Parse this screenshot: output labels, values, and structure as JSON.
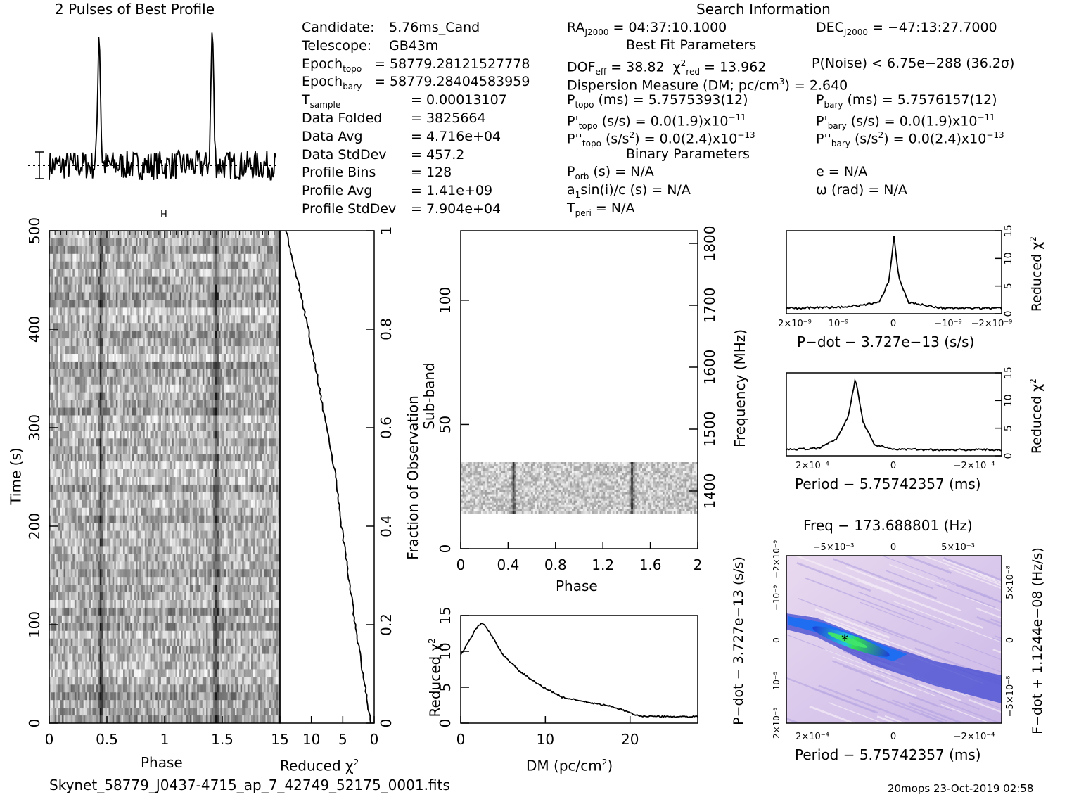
{
  "header": {
    "profile_title": "2 Pulses of Best Profile",
    "search_title": "Search Information",
    "filename": "Skynet_58779_J0437-4715_ap_7_42749_52175_0001.fits",
    "footer_stamp": "20mops 23-Oct-2019 02:58"
  },
  "info": {
    "col1": [
      {
        "label": "Candidate:",
        "value": "5.76ms_Cand"
      },
      {
        "label": "Telescope:",
        "value": "GB43m"
      },
      {
        "label": "Epoch",
        "sub": "topo",
        "value": "= 58779.28121527778"
      },
      {
        "label": "Epoch",
        "sub": "bary",
        "value": "= 58779.28404583959"
      },
      {
        "label": "T",
        "sub": "sample",
        "value": "=   0.00013107"
      },
      {
        "label": "Data Folded",
        "value": "=   3825664"
      },
      {
        "label": "Data Avg",
        "value": "=   4.716e+04"
      },
      {
        "label": "Data StdDev",
        "value": "=   457.2"
      },
      {
        "label": "Profile Bins",
        "value": "=   128"
      },
      {
        "label": "Profile Avg",
        "value": "=   1.41e+09"
      },
      {
        "label": "Profile StdDev",
        "value": "=   7.904e+04"
      }
    ],
    "ra": "RA",
    "ra_sub": "J2000",
    "ra_value": " = 04:37:10.1000",
    "dec": "DEC",
    "dec_sub": "J2000",
    "dec_value": " = −47:13:27.7000",
    "best_fit_title": "Best Fit Parameters",
    "dof": "DOF",
    "dof_sub": "eff",
    "dof_value": " = 38.82",
    "chi": "χ",
    "chi_sup": "2",
    "chi_sub": "red",
    "chi_value": " = 13.962",
    "pnoise": "P(Noise) < 6.75e−288   (36.2σ)",
    "dm_line": "Dispersion Measure (DM; pc/cm",
    "dm_sup": "3",
    "dm_value": ") = 2.640",
    "ptopo": "P",
    "ptopo_sub": "topo",
    "ptopo_value": " (ms) =  5.7575393(12)",
    "pbary": "P",
    "pbary_sub": "bary",
    "pbary_value": " (ms) =  5.7576157(12)",
    "pdtopo": "P'",
    "pdtopo_sub": "topo",
    "pdtopo_value": " (s/s) = 0.0(1.9)x10",
    "pdtopo_exp": "−11",
    "pdbary": "P'",
    "pdbary_sub": "bary",
    "pdbary_value": " (s/s) = 0.0(1.9)x10",
    "pdbary_exp": "−11",
    "pddtopo": "P''",
    "pddtopo_sub": "topo",
    "pddtopo_value": " (s/s",
    "pddtopo_mid": "2",
    "pddtopo_value2": ") = 0.0(2.4)x10",
    "pddtopo_exp": "−13",
    "pddbary": "P''",
    "pddbary_sub": "bary",
    "pddbary_value": " (s/s",
    "pddbary_mid": "2",
    "pddbary_value2": ") = 0.0(2.4)x10",
    "pddbary_exp": "−13",
    "binary_title": "Binary Parameters",
    "porb": "P",
    "porb_sub": "orb",
    "porb_value": " (s) = N/A",
    "ecc": "e = N/A",
    "a1": "a",
    "a1_sub": "1",
    "a1_value": "sin(i)/c (s) = N/A",
    "omega": "ω (rad) = N/A",
    "tperi": "T",
    "tperi_sub": "peri",
    "tperi_value": " = N/A"
  },
  "chart_data": [
    {
      "type": "line",
      "title": "2 Pulses of Best Profile",
      "xlabel": "",
      "ylabel": "",
      "description_series": "pulse profile",
      "x": [
        0.0,
        0.1,
        0.2,
        0.3,
        0.38,
        0.42,
        0.44,
        0.46,
        0.5,
        0.6,
        0.7,
        0.8,
        0.9,
        1.0,
        1.1,
        1.2,
        1.3,
        1.38,
        1.42,
        1.44,
        1.46,
        1.5,
        1.6,
        1.7,
        1.8,
        1.9,
        2.0
      ],
      "y": [
        0.05,
        -0.1,
        0.02,
        -0.08,
        0.15,
        0.9,
        1.0,
        0.6,
        0.05,
        -0.15,
        -0.05,
        -0.1,
        -0.05,
        0.0,
        -0.18,
        0.05,
        -0.1,
        0.2,
        0.9,
        1.0,
        0.55,
        0.05,
        -0.12,
        0.02,
        -0.2,
        -0.1,
        -0.05
      ]
    },
    {
      "type": "heatmap",
      "xlabel": "Phase",
      "ylabel": "Time (s)",
      "xlim": [
        0,
        2
      ],
      "ylim": [
        0,
        500
      ],
      "x_ticks": [
        "0",
        "0.5",
        "1",
        "1.5"
      ],
      "y_ticks": [
        "0",
        "100",
        "200",
        "300",
        "400",
        "500"
      ]
    },
    {
      "type": "line",
      "xlabel": "Reduced χ²",
      "ylabel": "Fraction of Observation",
      "x_ticks": [
        "15",
        "10",
        "5",
        "0"
      ],
      "y_ticks": [
        "0",
        "0.2",
        "0.4",
        "0.6",
        "0.8",
        "1"
      ],
      "fraction": [
        0.0,
        0.02,
        0.05,
        0.1,
        0.2,
        0.3,
        0.4,
        0.5,
        0.6,
        0.7,
        0.8,
        0.9,
        0.95,
        1.0
      ],
      "chi2": [
        0.5,
        0.8,
        1.1,
        1.8,
        3.0,
        4.1,
        5.2,
        6.1,
        7.6,
        9.0,
        10.5,
        12.2,
        13.2,
        14.0
      ]
    },
    {
      "type": "heatmap",
      "xlabel": "Phase",
      "ylabel": "Sub-band",
      "y2label": "Frequency (MHz)",
      "xlim": [
        0,
        2
      ],
      "ylim": [
        0,
        128
      ],
      "x_ticks": [
        "0",
        "0.4",
        "0.8",
        "1.2",
        "1.6",
        "2"
      ],
      "y_ticks": [
        "0",
        "50",
        "100"
      ],
      "y2_ticks": [
        "1400",
        "1500",
        "1600",
        "1700",
        "1800"
      ]
    },
    {
      "type": "line",
      "xlabel": "DM (pc/cm³)",
      "ylabel": "Reduced χ²",
      "xlim": [
        0,
        28
      ],
      "ylim": [
        0,
        15
      ],
      "x_ticks": [
        "0",
        "10",
        "20"
      ],
      "y_ticks": [
        "0",
        "5",
        "10",
        "15"
      ],
      "x": [
        0,
        1,
        2,
        2.6,
        3.5,
        5,
        7,
        9,
        12,
        15,
        18,
        21,
        24,
        28
      ],
      "y": [
        9.5,
        11.5,
        13.5,
        13.96,
        12.5,
        9.5,
        7.2,
        5.5,
        3.6,
        2.9,
        2.3,
        1.0,
        0.9,
        0.9
      ]
    },
    {
      "type": "line",
      "xlabel": "P−dot − 3.727e−13 (s/s)",
      "ylabel": "Reduced χ²",
      "ylim": [
        0,
        15
      ],
      "y_ticks": [
        "0",
        "5",
        "10",
        "15"
      ],
      "x_ticks": [
        "2×10⁻⁹",
        "10⁻⁹",
        "0",
        "−10⁻⁹",
        "−2×10⁻⁹"
      ],
      "x": [
        -2,
        -1,
        -0.3,
        -0.1,
        0,
        0.1,
        0.3,
        1,
        2
      ],
      "y": [
        1.0,
        1.0,
        2.0,
        6.5,
        14.0,
        6.0,
        2.0,
        1.2,
        1.0
      ]
    },
    {
      "type": "line",
      "xlabel": "Period − 5.75742357 (ms)",
      "ylabel": "Reduced χ²",
      "ylim": [
        0,
        15
      ],
      "y_ticks": [
        "0",
        "5",
        "10",
        "15"
      ],
      "x_ticks": [
        "2×10⁻⁴",
        "0",
        "−2×10⁻⁴"
      ],
      "x": [
        2.6,
        2.0,
        1.5,
        1.2,
        1.0,
        0.8,
        0.5,
        0,
        -1.0,
        -2.6
      ],
      "y": [
        1.2,
        1.3,
        3.0,
        7.0,
        14.0,
        6.0,
        2.0,
        1.2,
        1.1,
        1.1
      ]
    },
    {
      "type": "heatmap",
      "title": "Freq − 173.688801 (Hz)",
      "xlabel": "Period − 5.75742357 (ms)",
      "ylabel": "P−dot − 3.727e−13 (s/s)",
      "y2label": "F−dot + 1.1244e−08 (Hz/s)",
      "x_ticks": [
        "2×10⁻⁴",
        "0",
        "−2×10⁻⁴"
      ],
      "x2_ticks": [
        "−5×10⁻³",
        "0",
        "5×10⁻³"
      ],
      "y_ticks": [
        "2×10⁻⁹",
        "10⁻⁹",
        "0",
        "−10⁻⁹",
        "−2×10⁻⁹"
      ],
      "y2_ticks": [
        "−5×10⁻⁸",
        "0",
        "5×10⁻⁸"
      ]
    }
  ],
  "labels": {
    "phase": "Phase",
    "time": "Time (s)",
    "reduced": "Reduced ",
    "chi": "χ",
    "two": "2",
    "fraction": "Fraction of Observation",
    "subband": "Sub-band",
    "frequency": "Frequency (MHz)",
    "dm_axis": "DM (pc/cm",
    "dm_axis_close": ")",
    "pdot_axis": "P−dot − 3.727e−13 (s/s)",
    "period_axis": "Period − 5.75742357 (ms)",
    "freq_axis": "Freq − 173.688801 (Hz)",
    "fdot_axis": "F−dot + 1.1244e−08 (Hz/s)",
    "pdot_vert": "P−dot − 3.727e−13 (s/s)"
  }
}
